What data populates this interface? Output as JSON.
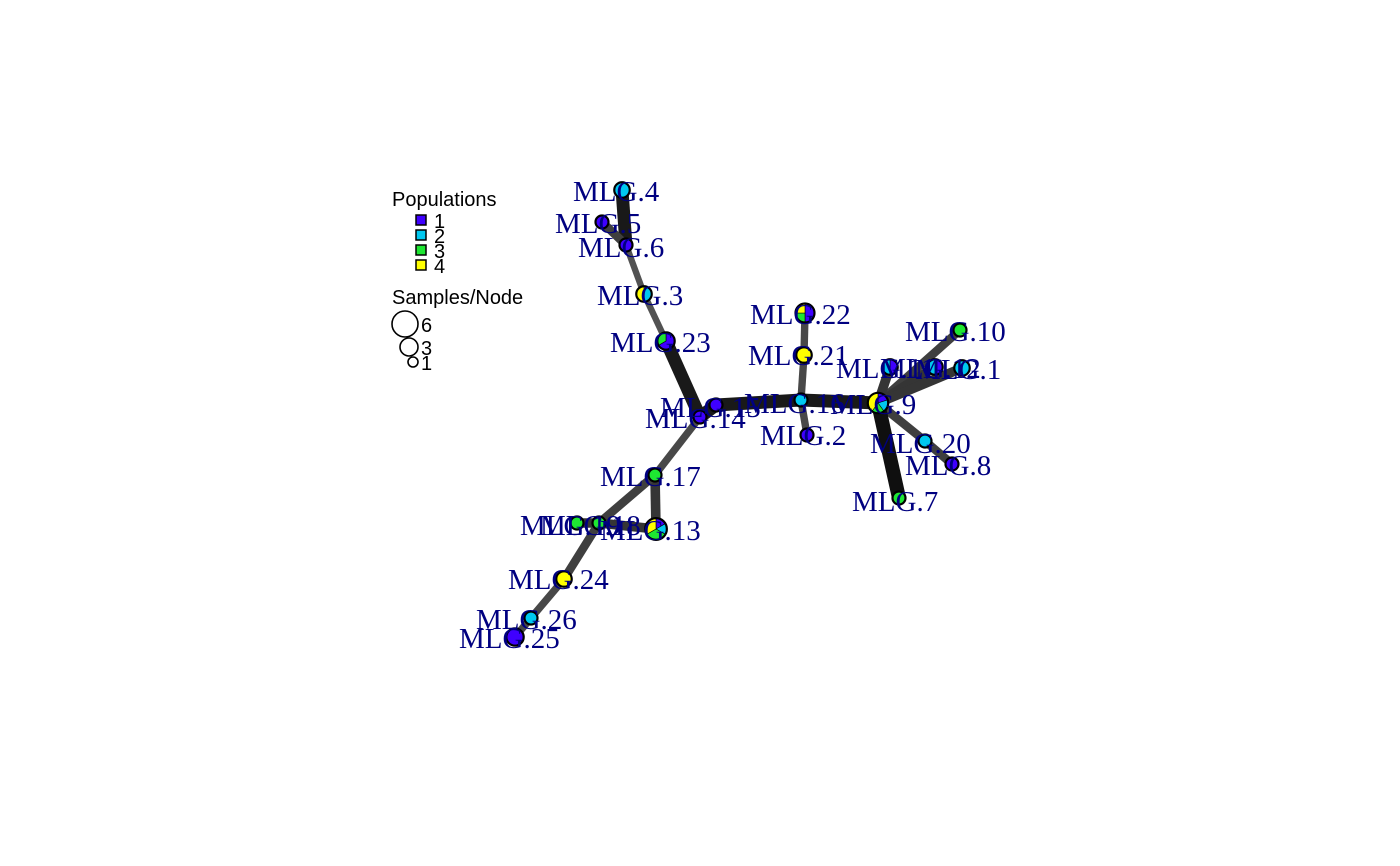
{
  "legend": {
    "populations_title": "Populations",
    "populations": [
      {
        "label": "1",
        "color": "#3F00FF"
      },
      {
        "label": "2",
        "color": "#00C8F0"
      },
      {
        "label": "3",
        "color": "#1EE632"
      },
      {
        "label": "4",
        "color": "#FFFF00"
      }
    ],
    "size_title": "Samples/Node",
    "sizes": [
      {
        "label": "6",
        "value": 6
      },
      {
        "label": "3",
        "value": 3
      },
      {
        "label": "1",
        "value": 1
      }
    ]
  },
  "nodes": [
    {
      "id": "MLG.1",
      "label": "MLG.1",
      "size": 2,
      "pops": [
        0,
        2,
        0,
        0
      ]
    },
    {
      "id": "MLG.2",
      "label": "MLG.2",
      "size": 1,
      "pops": [
        1,
        0,
        0,
        0
      ]
    },
    {
      "id": "MLG.3",
      "label": "MLG.3",
      "size": 2,
      "pops": [
        0,
        1,
        0,
        1
      ]
    },
    {
      "id": "MLG.4",
      "label": "MLG.4",
      "size": 2,
      "pops": [
        0,
        2,
        0,
        0
      ]
    },
    {
      "id": "MLG.5",
      "label": "MLG.5",
      "size": 1,
      "pops": [
        1,
        0,
        0,
        0
      ]
    },
    {
      "id": "MLG.6",
      "label": "MLG.6",
      "size": 1,
      "pops": [
        1,
        0,
        0,
        0
      ]
    },
    {
      "id": "MLG.7",
      "label": "MLG.7",
      "size": 1,
      "pops": [
        0,
        0,
        1,
        0
      ]
    },
    {
      "id": "MLG.8",
      "label": "MLG.8",
      "size": 1,
      "pops": [
        1,
        0,
        0,
        0
      ]
    },
    {
      "id": "MLG.9",
      "label": "MLG.9",
      "size": 5,
      "pops": [
        1,
        1,
        1,
        2
      ]
    },
    {
      "id": "MLG.10",
      "label": "MLG.10",
      "size": 1,
      "pops": [
        0,
        0,
        1,
        0
      ]
    },
    {
      "id": "MLG.11",
      "label": "MLG.11",
      "size": 2,
      "pops": [
        1,
        1,
        0,
        0
      ]
    },
    {
      "id": "MLG.12",
      "label": "MLG.12",
      "size": 2,
      "pops": [
        1,
        1,
        0,
        0
      ]
    },
    {
      "id": "MLG.13",
      "label": "MLG.13",
      "size": 6,
      "pops": [
        1,
        1,
        2,
        2
      ]
    },
    {
      "id": "MLG.14",
      "label": "MLG.14",
      "size": 1,
      "pops": [
        1,
        0,
        0,
        0
      ]
    },
    {
      "id": "MLG.15",
      "label": "MLG.15",
      "size": 1,
      "pops": [
        1,
        0,
        0,
        0
      ]
    },
    {
      "id": "MLG.16",
      "label": "MLG.16",
      "size": 1,
      "pops": [
        0,
        1,
        0,
        0
      ]
    },
    {
      "id": "MLG.17",
      "label": "MLG.17",
      "size": 1,
      "pops": [
        0,
        0,
        1,
        0
      ]
    },
    {
      "id": "MLG.18",
      "label": "MLG.18",
      "size": 1,
      "pops": [
        0,
        0,
        1,
        0
      ]
    },
    {
      "id": "MLG.19",
      "label": "MLG.19",
      "size": 1,
      "pops": [
        0,
        0,
        1,
        0
      ]
    },
    {
      "id": "MLG.20",
      "label": "MLG.20",
      "size": 1,
      "pops": [
        0,
        1,
        0,
        0
      ]
    },
    {
      "id": "MLG.21",
      "label": "MLG.21",
      "size": 2,
      "pops": [
        0,
        0,
        0,
        2
      ]
    },
    {
      "id": "MLG.22",
      "label": "MLG.22",
      "size": 4,
      "pops": [
        2,
        0,
        1,
        1
      ]
    },
    {
      "id": "MLG.23",
      "label": "MLG.23",
      "size": 3,
      "pops": [
        2,
        0,
        1,
        0
      ]
    },
    {
      "id": "MLG.24",
      "label": "MLG.24",
      "size": 2,
      "pops": [
        0,
        0,
        0,
        2
      ]
    },
    {
      "id": "MLG.25",
      "label": "MLG.25",
      "size": 3,
      "pops": [
        3,
        0,
        0,
        0
      ]
    },
    {
      "id": "MLG.26",
      "label": "MLG.26",
      "size": 1,
      "pops": [
        0,
        1,
        0,
        0
      ]
    }
  ],
  "edges": [
    {
      "from": "MLG.4",
      "to": "MLG.6",
      "weight": 0.9
    },
    {
      "from": "MLG.5",
      "to": "MLG.6",
      "weight": 0.5
    },
    {
      "from": "MLG.6",
      "to": "MLG.3",
      "weight": 0.3
    },
    {
      "from": "MLG.3",
      "to": "MLG.23",
      "weight": 0.3
    },
    {
      "from": "MLG.23",
      "to": "MLG.14",
      "weight": 0.9
    },
    {
      "from": "MLG.14",
      "to": "MLG.15",
      "weight": 0.9
    },
    {
      "from": "MLG.15",
      "to": "MLG.16",
      "weight": 0.9
    },
    {
      "from": "MLG.16",
      "to": "MLG.9",
      "weight": 0.9
    },
    {
      "from": "MLG.16",
      "to": "MLG.21",
      "weight": 0.4
    },
    {
      "from": "MLG.21",
      "to": "MLG.22",
      "weight": 0.4
    },
    {
      "from": "MLG.16",
      "to": "MLG.2",
      "weight": 0.4
    },
    {
      "from": "MLG.9",
      "to": "MLG.10",
      "weight": 0.5
    },
    {
      "from": "MLG.9",
      "to": "MLG.11",
      "weight": 0.6
    },
    {
      "from": "MLG.9",
      "to": "MLG.12",
      "weight": 0.6
    },
    {
      "from": "MLG.9",
      "to": "MLG.1",
      "weight": 0.6
    },
    {
      "from": "MLG.9",
      "to": "MLG.20",
      "weight": 0.5
    },
    {
      "from": "MLG.20",
      "to": "MLG.8",
      "weight": 0.5
    },
    {
      "from": "MLG.9",
      "to": "MLG.7",
      "weight": 1.0
    },
    {
      "from": "MLG.14",
      "to": "MLG.17",
      "weight": 0.4
    },
    {
      "from": "MLG.17",
      "to": "MLG.13",
      "weight": 0.6
    },
    {
      "from": "MLG.17",
      "to": "MLG.18",
      "weight": 0.5
    },
    {
      "from": "MLG.18",
      "to": "MLG.19",
      "weight": 0.6
    },
    {
      "from": "MLG.18",
      "to": "MLG.13",
      "weight": 0.6
    },
    {
      "from": "MLG.18",
      "to": "MLG.24",
      "weight": 0.5
    },
    {
      "from": "MLG.24",
      "to": "MLG.26",
      "weight": 0.4
    },
    {
      "from": "MLG.26",
      "to": "MLG.25",
      "weight": 0.4
    }
  ]
}
